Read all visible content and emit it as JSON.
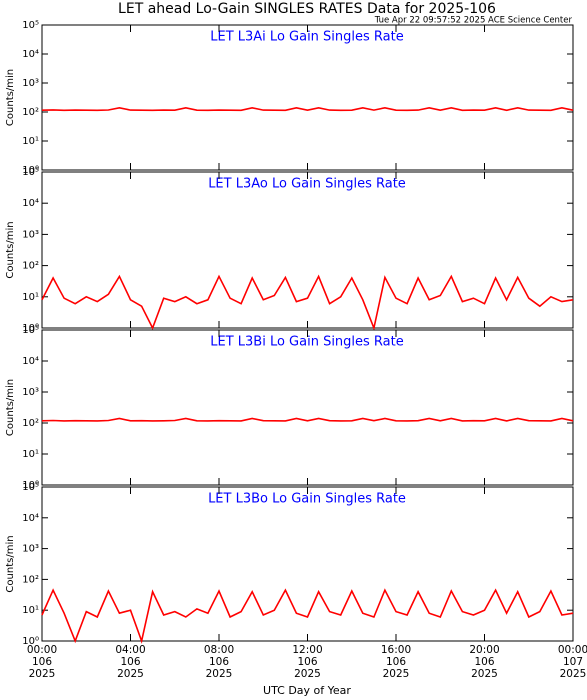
{
  "title": "LET ahead Lo-Gain SINGLES RATES Data for 2025-106",
  "subtitle": "Tue Apr 22 09:57:52 2025 ACE Science Center",
  "xlabel": "UTC Day of Year",
  "chart_data": [
    {
      "type": "line",
      "title": "LET L3Ai Lo Gain Singles Rate",
      "ylabel": "Counts/min",
      "log_y": true,
      "xlim": [
        0,
        24
      ],
      "xticks": [
        0,
        4,
        8,
        12,
        16,
        20,
        24
      ],
      "ylim": [
        1,
        100000
      ],
      "yticks": [
        {
          "value": 1,
          "label": "10⁰"
        },
        {
          "value": 10,
          "label": "10¹"
        },
        {
          "value": 100,
          "label": "10²"
        },
        {
          "value": 1000,
          "label": "10³"
        },
        {
          "value": 10000,
          "label": "10⁴"
        },
        {
          "value": 100000,
          "label": "10⁵"
        }
      ],
      "series": [
        {
          "color": "#ff0000",
          "x": [
            0,
            0.5,
            1,
            1.5,
            2,
            2.5,
            3,
            3.5,
            4,
            4.5,
            5,
            5.5,
            6,
            6.5,
            7,
            7.5,
            8,
            8.5,
            9,
            9.5,
            10,
            10.5,
            11,
            11.5,
            12,
            12.5,
            13,
            13.5,
            14,
            14.5,
            15,
            15.5,
            16,
            16.5,
            17,
            17.5,
            18,
            18.5,
            19,
            19.5,
            20,
            20.5,
            21,
            21.5,
            22,
            22.5,
            23,
            23.5,
            24
          ],
          "values": [
            115,
            118,
            114,
            116,
            115,
            114,
            117,
            140,
            116,
            115,
            114,
            116,
            115,
            140,
            115,
            114,
            116,
            115,
            114,
            140,
            116,
            115,
            114,
            140,
            115,
            140,
            116,
            114,
            115,
            140,
            116,
            140,
            115,
            114,
            116,
            140,
            115,
            140,
            114,
            116,
            115,
            140,
            114,
            140,
            116,
            115,
            114,
            140,
            115
          ]
        }
      ]
    },
    {
      "type": "line",
      "title": "LET L3Ao Lo Gain Singles Rate",
      "ylabel": "Counts/min",
      "log_y": true,
      "xlim": [
        0,
        24
      ],
      "xticks": [
        0,
        4,
        8,
        12,
        16,
        20,
        24
      ],
      "ylim": [
        1,
        100000
      ],
      "yticks": [
        {
          "value": 1,
          "label": "10⁰"
        },
        {
          "value": 10,
          "label": "10¹"
        },
        {
          "value": 100,
          "label": "10²"
        },
        {
          "value": 1000,
          "label": "10³"
        },
        {
          "value": 10000,
          "label": "10⁴"
        },
        {
          "value": 100000,
          "label": "10⁵"
        }
      ],
      "series": [
        {
          "color": "#ff0000",
          "x": [
            0,
            0.5,
            1,
            1.5,
            2,
            2.5,
            3,
            3.5,
            4,
            4.5,
            5,
            5.5,
            6,
            6.5,
            7,
            7.5,
            8,
            8.5,
            9,
            9.5,
            10,
            10.5,
            11,
            11.5,
            12,
            12.5,
            13,
            13.5,
            14,
            14.5,
            15,
            15.5,
            16,
            16.5,
            17,
            17.5,
            18,
            18.5,
            19,
            19.5,
            20,
            20.5,
            21,
            21.5,
            22,
            22.5,
            23,
            23.5,
            24
          ],
          "values": [
            8,
            40,
            9,
            6,
            10,
            7,
            12,
            45,
            8,
            5,
            1,
            9,
            7,
            10,
            6,
            8,
            45,
            9,
            6,
            40,
            8,
            11,
            42,
            7,
            9,
            45,
            6,
            10,
            40,
            8,
            1,
            42,
            9,
            6,
            40,
            8,
            11,
            45,
            7,
            9,
            6,
            40,
            8,
            42,
            9,
            5,
            10,
            7,
            8
          ]
        }
      ]
    },
    {
      "type": "line",
      "title": "LET L3Bi Lo Gain Singles Rate",
      "ylabel": "Counts/min",
      "log_y": true,
      "xlim": [
        0,
        24
      ],
      "xticks": [
        0,
        4,
        8,
        12,
        16,
        20,
        24
      ],
      "ylim": [
        1,
        100000
      ],
      "yticks": [
        {
          "value": 1,
          "label": "10⁰"
        },
        {
          "value": 10,
          "label": "10¹"
        },
        {
          "value": 100,
          "label": "10²"
        },
        {
          "value": 1000,
          "label": "10³"
        },
        {
          "value": 10000,
          "label": "10⁴"
        },
        {
          "value": 100000,
          "label": "10⁵"
        }
      ],
      "series": [
        {
          "color": "#ff0000",
          "x": [
            0,
            0.5,
            1,
            1.5,
            2,
            2.5,
            3,
            3.5,
            4,
            4.5,
            5,
            5.5,
            6,
            6.5,
            7,
            7.5,
            8,
            8.5,
            9,
            9.5,
            10,
            10.5,
            11,
            11.5,
            12,
            12.5,
            13,
            13.5,
            14,
            14.5,
            15,
            15.5,
            16,
            16.5,
            17,
            17.5,
            18,
            18.5,
            19,
            19.5,
            20,
            20.5,
            21,
            21.5,
            22,
            22.5,
            23,
            23.5,
            24
          ],
          "values": [
            118,
            120,
            117,
            119,
            118,
            117,
            120,
            140,
            118,
            119,
            117,
            118,
            120,
            140,
            118,
            117,
            119,
            118,
            117,
            140,
            119,
            118,
            117,
            140,
            118,
            140,
            119,
            117,
            118,
            140,
            119,
            140,
            118,
            117,
            119,
            140,
            118,
            140,
            117,
            119,
            118,
            140,
            117,
            140,
            119,
            118,
            117,
            140,
            118
          ]
        }
      ]
    },
    {
      "type": "line",
      "title": "LET L3Bo Lo Gain Singles Rate",
      "ylabel": "Counts/min",
      "log_y": true,
      "xlim": [
        0,
        24
      ],
      "xticks": [
        {
          "value": 0,
          "label": [
            "00:00",
            "106",
            "2025"
          ]
        },
        {
          "value": 4,
          "label": [
            "04:00",
            "106",
            "2025"
          ]
        },
        {
          "value": 8,
          "label": [
            "08:00",
            "106",
            "2025"
          ]
        },
        {
          "value": 12,
          "label": [
            "12:00",
            "106",
            "2025"
          ]
        },
        {
          "value": 16,
          "label": [
            "16:00",
            "106",
            "2025"
          ]
        },
        {
          "value": 20,
          "label": [
            "20:00",
            "106",
            "2025"
          ]
        },
        {
          "value": 24,
          "label": [
            "00:00",
            "107",
            "2025"
          ]
        }
      ],
      "ylim": [
        1,
        100000
      ],
      "yticks": [
        {
          "value": 1,
          "label": "10⁰"
        },
        {
          "value": 10,
          "label": "10¹"
        },
        {
          "value": 100,
          "label": "10²"
        },
        {
          "value": 1000,
          "label": "10³"
        },
        {
          "value": 10000,
          "label": "10⁴"
        },
        {
          "value": 100000,
          "label": "10⁵"
        }
      ],
      "series": [
        {
          "color": "#ff0000",
          "x": [
            0,
            0.5,
            1,
            1.5,
            2,
            2.5,
            3,
            3.5,
            4,
            4.5,
            5,
            5.5,
            6,
            6.5,
            7,
            7.5,
            8,
            8.5,
            9,
            9.5,
            10,
            10.5,
            11,
            11.5,
            12,
            12.5,
            13,
            13.5,
            14,
            14.5,
            15,
            15.5,
            16,
            16.5,
            17,
            17.5,
            18,
            18.5,
            19,
            19.5,
            20,
            20.5,
            21,
            21.5,
            22,
            22.5,
            23,
            23.5,
            24
          ],
          "values": [
            7,
            45,
            8,
            1,
            9,
            6,
            42,
            8,
            10,
            1,
            40,
            7,
            9,
            6,
            11,
            8,
            42,
            6,
            9,
            40,
            7,
            10,
            45,
            8,
            6,
            40,
            9,
            7,
            42,
            8,
            6,
            45,
            9,
            7,
            40,
            8,
            6,
            42,
            9,
            7,
            10,
            45,
            8,
            40,
            6,
            9,
            42,
            7,
            8
          ]
        }
      ]
    }
  ]
}
